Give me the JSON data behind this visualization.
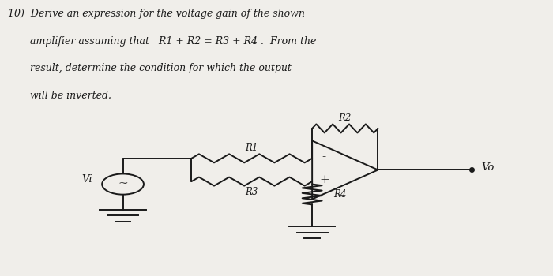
{
  "background_color": "#f0eeea",
  "text_color": "#1a1a1a",
  "title_lines": [
    "10)  Derive an expression for the voltage gain of the shown",
    "       amplifier assuming that   R1 + R2 = R3 + R4 .  From the",
    "       result, determine the condition for which the output",
    "       will be inverted."
  ]
}
